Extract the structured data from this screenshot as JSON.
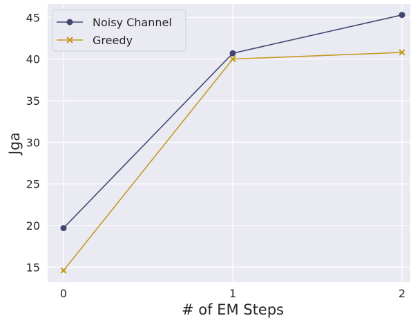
{
  "chart_data": {
    "type": "line",
    "xlabel": "# of EM Steps",
    "ylabel": "Jga",
    "x": [
      0,
      1,
      2
    ],
    "x_ticks": [
      "0",
      "1",
      "2"
    ],
    "y_ticks": [
      "15",
      "20",
      "25",
      "30",
      "35",
      "40",
      "45"
    ],
    "ylim": [
      13.2,
      46.6
    ],
    "grid": true,
    "legend_position": "top-left",
    "series": [
      {
        "name": "Noisy Channel",
        "values": [
          19.7,
          40.7,
          45.3
        ],
        "color": "#414772",
        "marker": "circle"
      },
      {
        "name": "Greedy",
        "values": [
          14.6,
          40.0,
          40.8
        ],
        "color": "#c49a21",
        "marker": "x"
      }
    ],
    "colors": {
      "plot_background": "#eaeaf2",
      "grid": "#ffffff"
    }
  }
}
